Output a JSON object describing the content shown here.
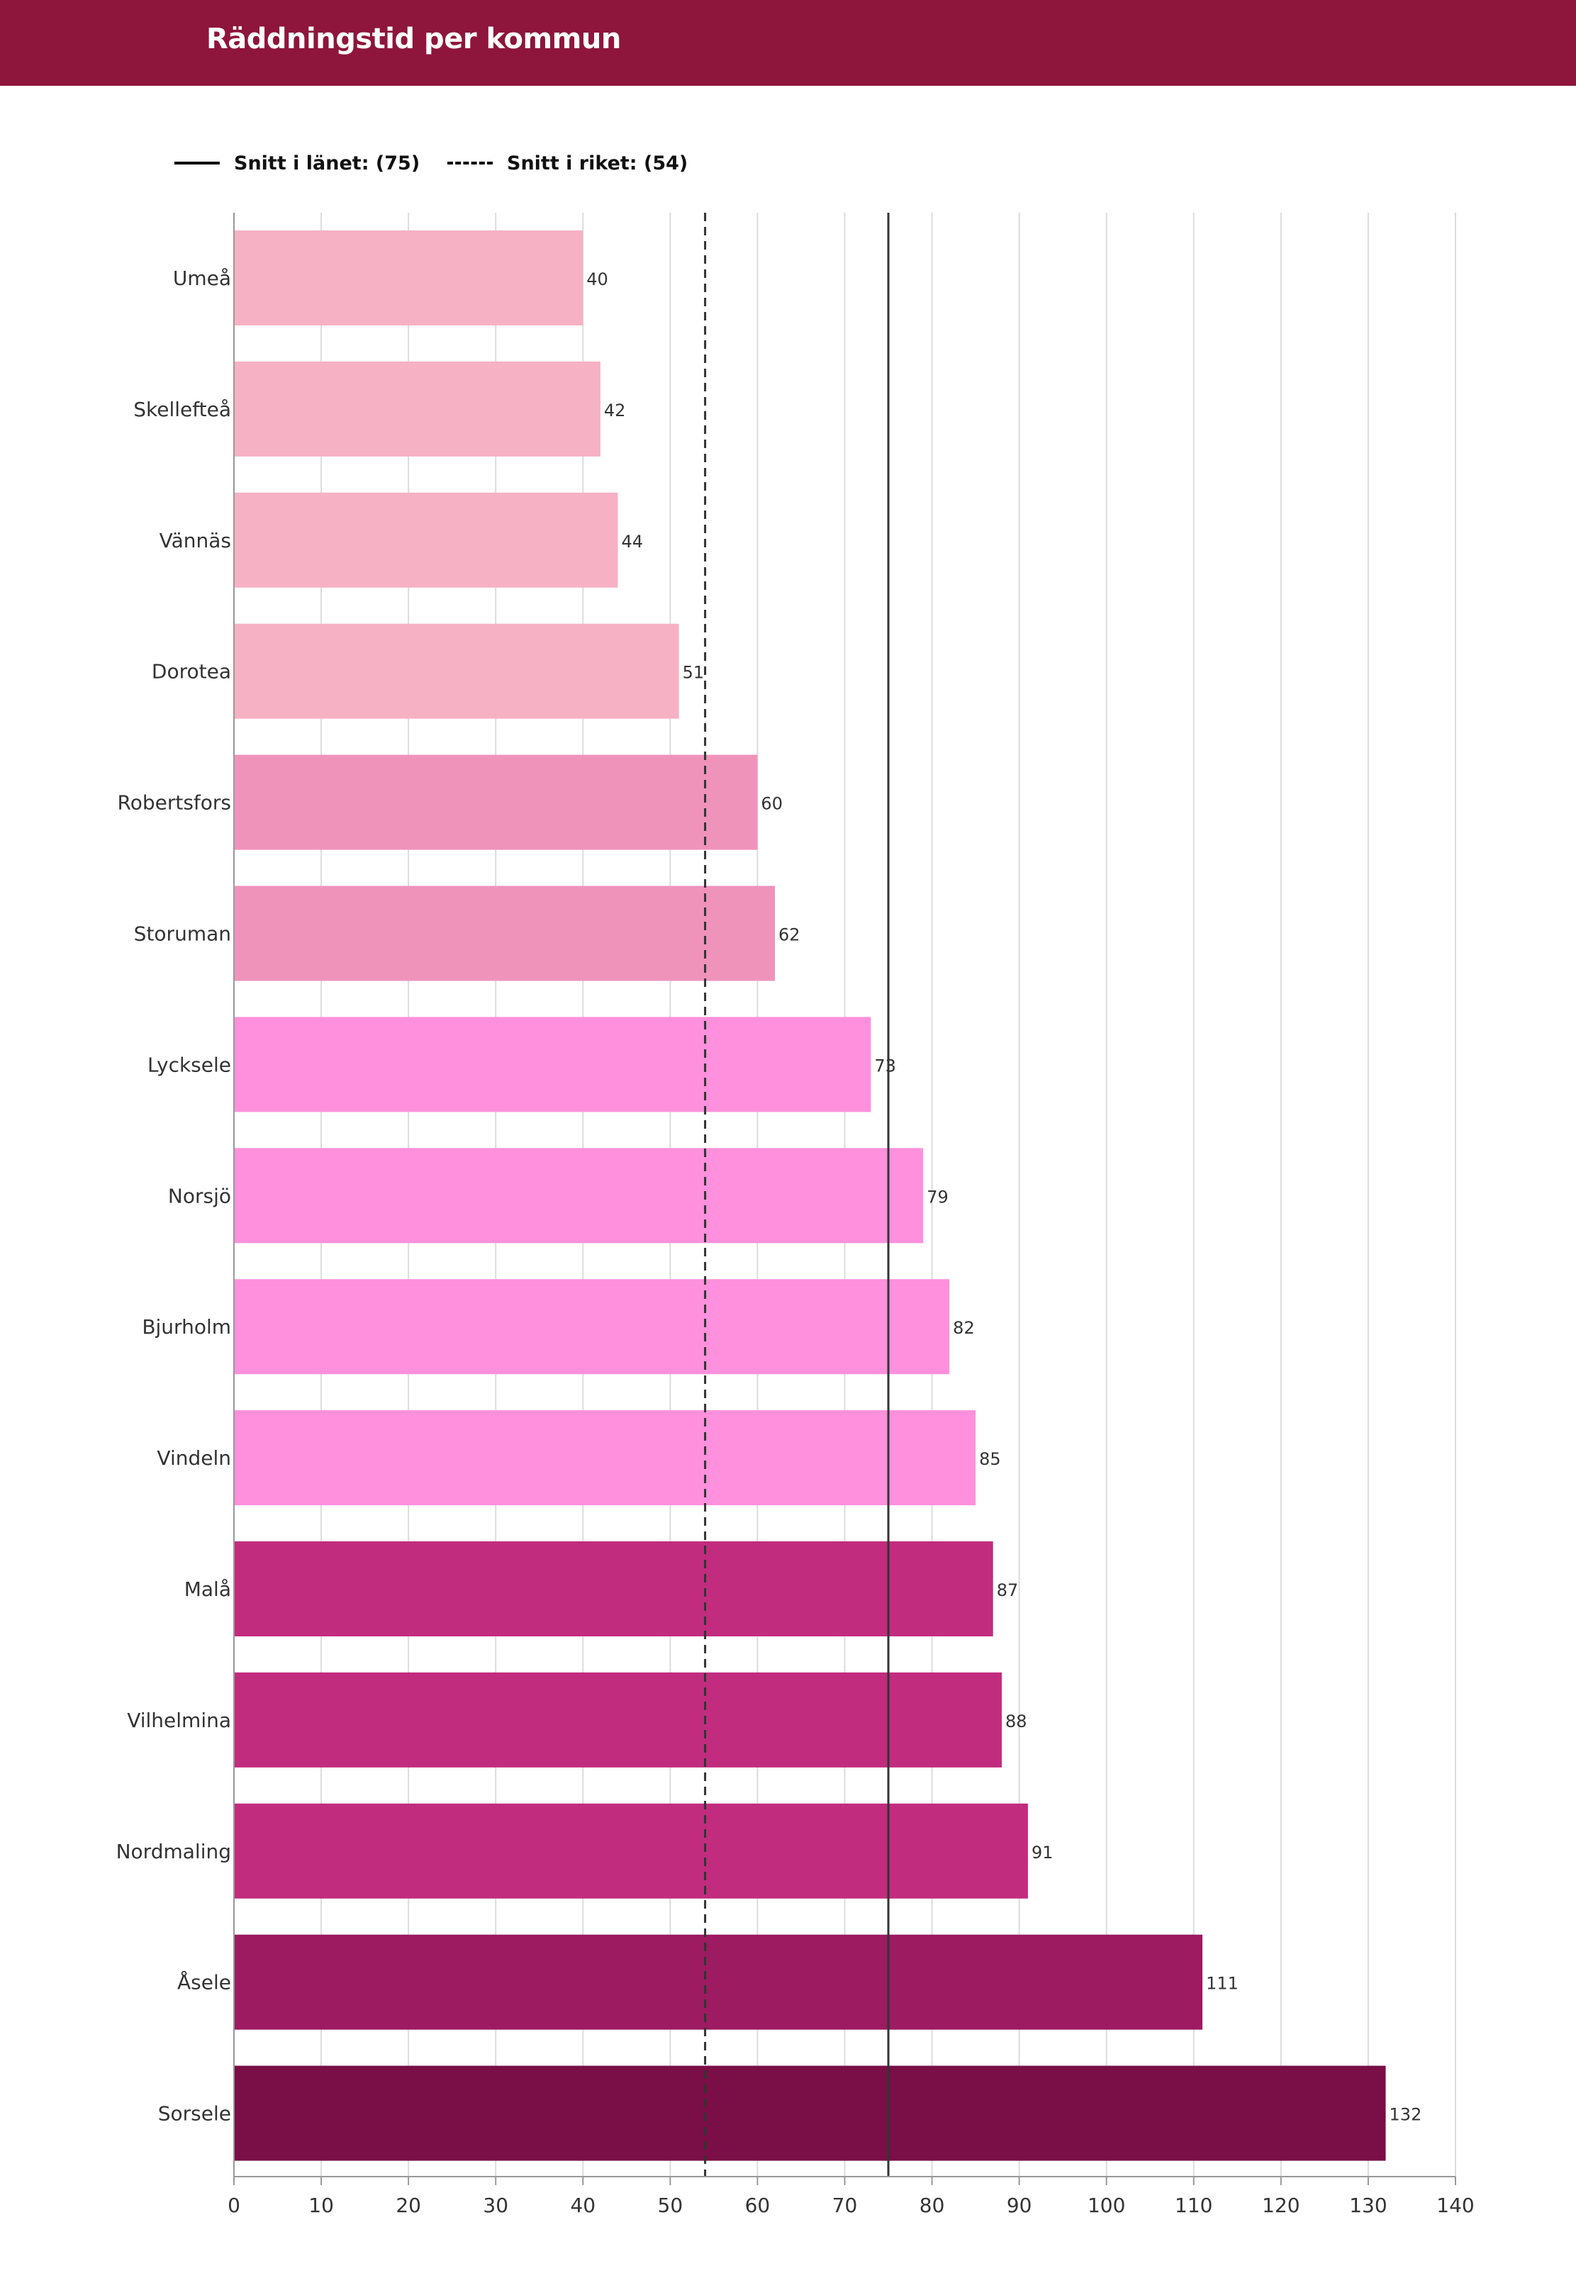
{
  "header": {
    "title": "Räddningstid per kommun"
  },
  "legend": {
    "lan": {
      "label": "Snitt i länet: (75)",
      "style": "solid"
    },
    "riket": {
      "label": "Snitt i riket: (54)",
      "style": "dashed"
    }
  },
  "chart_data": {
    "type": "bar",
    "orientation": "horizontal",
    "title": "Räddningstid per kommun",
    "xlabel": "",
    "ylabel": "",
    "xlim": [
      0,
      140
    ],
    "ticks": [
      0,
      10,
      20,
      30,
      40,
      50,
      60,
      70,
      80,
      90,
      100,
      110,
      120,
      130,
      140
    ],
    "grid": true,
    "legend_position": "top-left",
    "categories": [
      "Umeå",
      "Skellefteå",
      "Vännäs",
      "Dorotea",
      "Robertsfors",
      "Storuman",
      "Lycksele",
      "Norsjö",
      "Bjurholm",
      "Vindeln",
      "Malå",
      "Vilhelmina",
      "Nordmaling",
      "Åsele",
      "Sorsele"
    ],
    "values": [
      40,
      42,
      44,
      51,
      60,
      62,
      73,
      79,
      82,
      85,
      87,
      88,
      91,
      111,
      132
    ],
    "bar_colors": [
      "#f7b1c4",
      "#f7b1c4",
      "#f7b1c4",
      "#f7b1c4",
      "#f093bb",
      "#f093bb",
      "#fe90dd",
      "#fe90dd",
      "#fe90dd",
      "#fe90dd",
      "#c22c7e",
      "#c22c7e",
      "#c22c7e",
      "#9c1b61",
      "#7a0e47"
    ],
    "reference_lines": [
      {
        "name": "Snitt i länet",
        "value": 75,
        "style": "solid"
      },
      {
        "name": "Snitt i riket",
        "value": 54,
        "style": "dashed"
      }
    ]
  }
}
